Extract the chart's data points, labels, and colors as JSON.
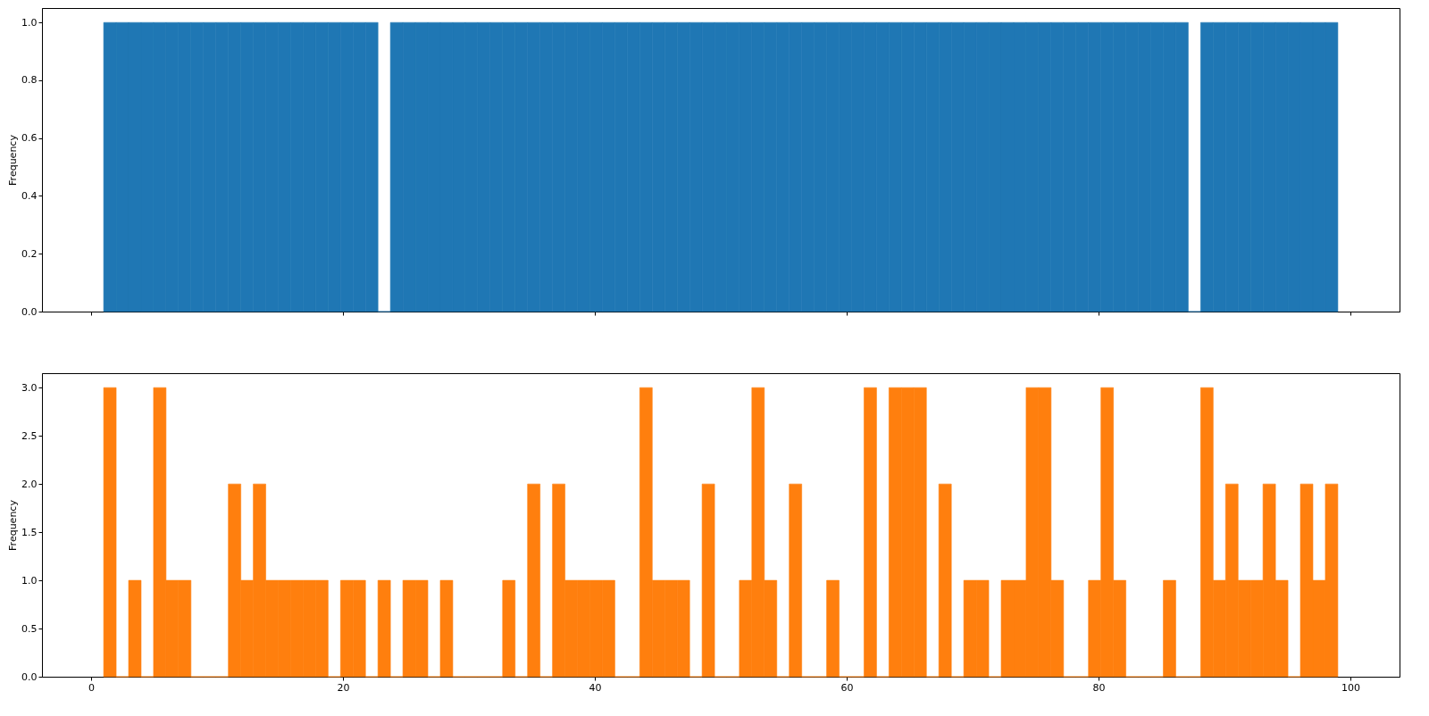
{
  "chart_data": [
    {
      "type": "histogram",
      "ylabel": "Frequency",
      "color": "#1f77b4",
      "bins": [
        1.0,
        1.99,
        2.98,
        3.97,
        4.96,
        5.95,
        6.94,
        7.93,
        8.92,
        9.91,
        10.9,
        11.89,
        12.88,
        13.87,
        14.86,
        15.85,
        16.84,
        17.83,
        18.82,
        19.81,
        20.8,
        21.79,
        22.78,
        23.77,
        24.76,
        25.75,
        26.74,
        27.73,
        28.72,
        29.71,
        30.7,
        31.69,
        32.68,
        33.67,
        34.66,
        35.65,
        36.64,
        37.63,
        38.62,
        39.61,
        40.6,
        41.59,
        42.58,
        43.57,
        44.56,
        45.55,
        46.54,
        47.53,
        48.52,
        49.51,
        50.49,
        51.48,
        52.47,
        53.46,
        54.45,
        55.44,
        56.43,
        57.42,
        58.41,
        59.4,
        60.39,
        61.38,
        62.37,
        63.36,
        64.35,
        65.34,
        66.33,
        67.32,
        68.31,
        69.3,
        70.29,
        71.28,
        72.27,
        73.26,
        74.25,
        75.24,
        76.23,
        77.22,
        78.21,
        79.2,
        80.19,
        81.18,
        82.17,
        83.16,
        84.15,
        85.14,
        86.13,
        87.12,
        88.11,
        89.1,
        90.09,
        91.08,
        92.07,
        93.06,
        94.05,
        95.04,
        96.03,
        97.02,
        98.01,
        99.0
      ],
      "values": [
        1,
        1,
        1,
        1,
        1,
        1,
        1,
        1,
        1,
        1,
        1,
        1,
        1,
        1,
        1,
        1,
        1,
        1,
        1,
        1,
        1,
        1,
        0,
        1,
        1,
        1,
        1,
        1,
        1,
        1,
        1,
        1,
        1,
        1,
        1,
        1,
        1,
        1,
        1,
        1,
        1,
        1,
        1,
        1,
        1,
        1,
        1,
        1,
        1,
        1,
        1,
        1,
        1,
        1,
        1,
        1,
        1,
        1,
        1,
        1,
        1,
        1,
        1,
        1,
        1,
        1,
        1,
        1,
        1,
        1,
        1,
        1,
        1,
        1,
        1,
        1,
        1,
        1,
        1,
        1,
        1,
        1,
        1,
        1,
        1,
        1,
        1,
        0,
        1,
        1,
        1,
        1,
        1,
        1,
        1,
        1,
        1,
        1,
        1
      ],
      "xlim": [
        -3.9,
        103.9
      ],
      "xticks": [
        0,
        20,
        40,
        60,
        80,
        100
      ],
      "ylim": [
        0,
        1.05
      ],
      "yticks": [
        {
          "value": 0,
          "label": "0.0"
        },
        0.2,
        0.4,
        0.6,
        0.8,
        {
          "value": 1,
          "label": "1.0"
        }
      ],
      "tick_labels": "y",
      "grid": false
    },
    {
      "type": "histogram",
      "ylabel": "Frequency",
      "color": "#ff7f0e",
      "bins": [
        1.0,
        1.99,
        2.98,
        3.97,
        4.96,
        5.95,
        6.94,
        7.93,
        8.92,
        9.91,
        10.9,
        11.89,
        12.88,
        13.87,
        14.86,
        15.85,
        16.84,
        17.83,
        18.82,
        19.81,
        20.8,
        21.79,
        22.78,
        23.77,
        24.76,
        25.75,
        26.74,
        27.73,
        28.72,
        29.71,
        30.7,
        31.69,
        32.68,
        33.67,
        34.66,
        35.65,
        36.64,
        37.63,
        38.62,
        39.61,
        40.6,
        41.59,
        42.58,
        43.57,
        44.56,
        45.55,
        46.54,
        47.53,
        48.52,
        49.51,
        50.49,
        51.48,
        52.47,
        53.46,
        54.45,
        55.44,
        56.43,
        57.42,
        58.41,
        59.4,
        60.39,
        61.38,
        62.37,
        63.36,
        64.35,
        65.34,
        66.33,
        67.32,
        68.31,
        69.3,
        70.29,
        71.28,
        72.27,
        73.26,
        74.25,
        75.24,
        76.23,
        77.22,
        78.21,
        79.2,
        80.19,
        81.18,
        82.17,
        83.16,
        84.15,
        85.14,
        86.13,
        87.12,
        88.11,
        89.1,
        90.09,
        91.08,
        92.07,
        93.06,
        94.05,
        95.04,
        96.03,
        97.02,
        98.01,
        99.0
      ],
      "values": [
        3,
        0,
        1,
        0,
        3,
        1,
        1,
        0,
        0,
        0,
        2,
        1,
        2,
        1,
        1,
        1,
        1,
        1,
        0,
        1,
        1,
        0,
        1,
        0,
        1,
        1,
        0,
        1,
        0,
        0,
        0,
        0,
        1,
        0,
        2,
        0,
        2,
        1,
        1,
        1,
        1,
        0,
        0,
        3,
        1,
        1,
        1,
        0,
        2,
        0,
        0,
        1,
        3,
        1,
        0,
        2,
        0,
        0,
        1,
        0,
        0,
        3,
        0,
        3,
        3,
        3,
        0,
        2,
        0,
        1,
        1,
        0,
        1,
        1,
        3,
        3,
        1,
        0,
        0,
        1,
        3,
        1,
        0,
        0,
        0,
        1,
        0,
        0,
        3,
        1,
        2,
        1,
        1,
        2,
        1,
        0,
        2,
        1,
        2
      ],
      "xlim": [
        -3.9,
        103.9
      ],
      "xticks": [
        0,
        20,
        40,
        60,
        80,
        100
      ],
      "ylim": [
        0,
        3.15
      ],
      "yticks": [
        {
          "value": 0,
          "label": "0.0"
        },
        0.5,
        {
          "value": 1,
          "label": "1.0"
        },
        1.5,
        {
          "value": 2,
          "label": "2.0"
        },
        2.5,
        {
          "value": 3,
          "label": "3.0"
        }
      ],
      "grid": false
    }
  ]
}
